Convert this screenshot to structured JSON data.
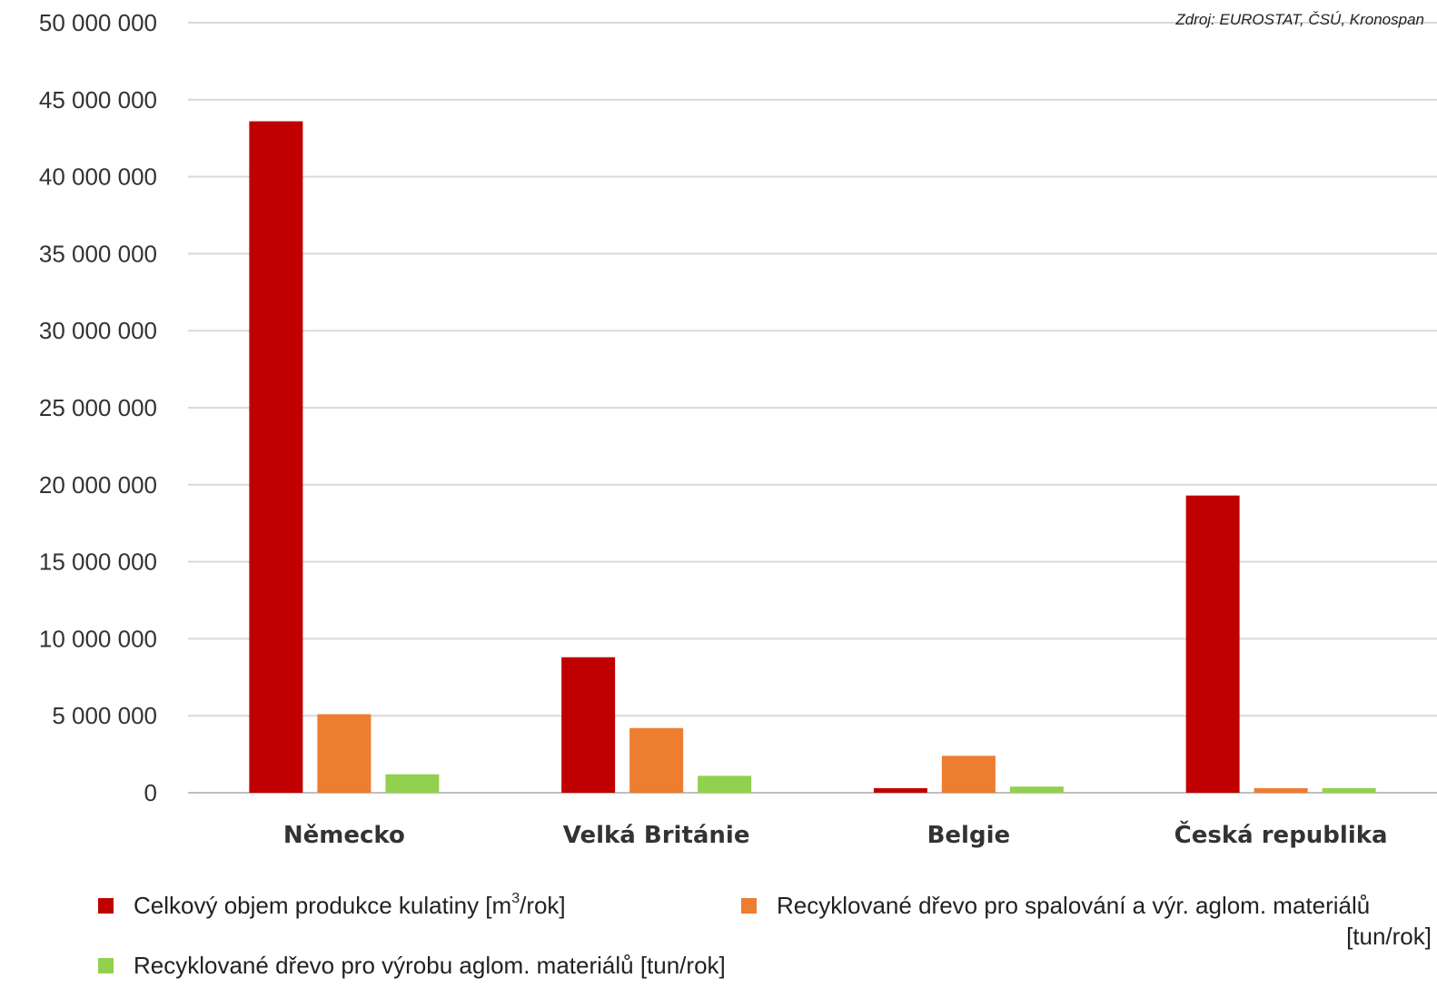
{
  "source": "Zdroj: EUROSTAT, ČSÚ, Kronospan",
  "chart_data": {
    "type": "bar",
    "categories": [
      "Německo",
      "Velká Británie",
      "Belgie",
      "Česká republika"
    ],
    "series": [
      {
        "name": "Celkový objem produkce kulatiny [m³/rok]",
        "values": [
          43600000,
          8800000,
          300000,
          19300000
        ],
        "color": "#c00000"
      },
      {
        "name": "Recyklované dřevo pro spalování a výr. aglom. materiálů [tun/rok]",
        "values": [
          5100000,
          4200000,
          2400000,
          300000
        ],
        "color": "#ed7d31"
      },
      {
        "name": "Recyklované dřevo pro výrobu aglom. materiálů [tun/rok]",
        "values": [
          1200000,
          1100000,
          400000,
          300000
        ],
        "color": "#92d050"
      }
    ],
    "ylim": [
      0,
      50000000
    ],
    "yticks": [
      "0",
      "5 000 000",
      "10 000 000",
      "15 000 000",
      "20 000 000",
      "25 000 000",
      "30 000 000",
      "35 000 000",
      "40 000 000",
      "45 000 000",
      "50 000 000"
    ],
    "grid": true,
    "legend": "bottom"
  },
  "legend": {
    "item1_text": "Celkový objem produkce kulatiny [m",
    "item1_sup": "3",
    "item1_tail": "/rok]",
    "item2_line1": "Recyklované dřevo pro spalování a výr. aglom. materiálů",
    "item2_line2": "[tun/rok]",
    "item3_text": "Recyklované dřevo pro výrobu aglom. materiálů [tun/rok]"
  }
}
